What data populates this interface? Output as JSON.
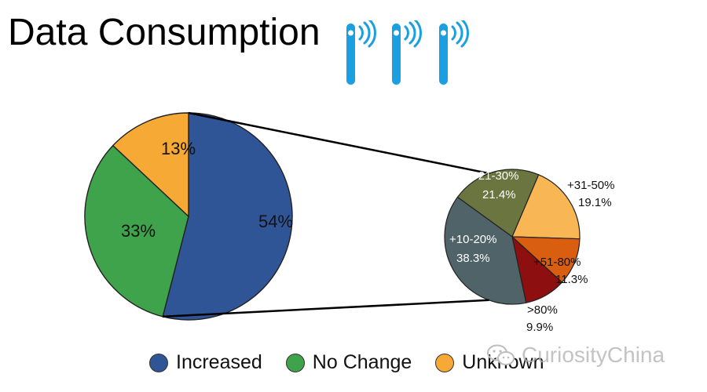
{
  "title": "Data Consumption",
  "watermark": "CuriosityChina",
  "icons": {
    "signal": "signal-tower-icon",
    "watermark_logo": "wechat-logo-icon",
    "color": "#1aa0e0"
  },
  "chart_data": [
    {
      "type": "pie",
      "categories": [
        "Increased",
        "No Change",
        "Unknown"
      ],
      "values": [
        54,
        33,
        13
      ],
      "labels": [
        "54%",
        "33%",
        "13%"
      ],
      "colors": [
        "#2f5597",
        "#3ea34a",
        "#f7a935"
      ],
      "legend_position": "bottom"
    },
    {
      "type": "pie",
      "categories": [
        "+21-30%",
        "+31-50%",
        "+51-80%",
        ">80%",
        "+10-20%"
      ],
      "values": [
        21.4,
        19.1,
        11.3,
        9.9,
        38.3
      ],
      "labels": [
        "21.4%",
        "19.1%",
        "11.3%",
        "9.9%",
        "38.3%"
      ],
      "colors": [
        "#6b7540",
        "#f8b754",
        "#d95e0f",
        "#8e0f0f",
        "#4f6369"
      ]
    }
  ]
}
